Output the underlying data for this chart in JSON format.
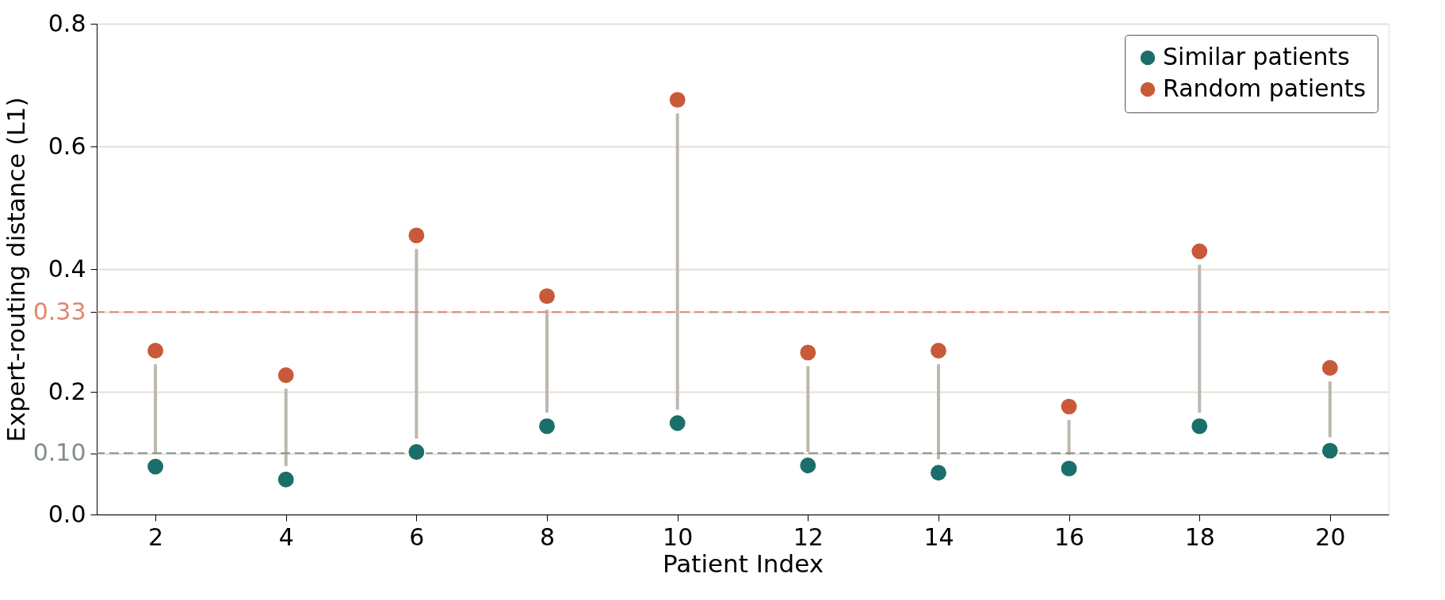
{
  "chart_data": {
    "type": "scatter",
    "xlabel": "Patient Index",
    "ylabel": "Expert-routing distance (L1)",
    "x": [
      2,
      4,
      6,
      8,
      10,
      12,
      14,
      16,
      18,
      20
    ],
    "series": [
      {
        "name": "Similar patients",
        "color": "#1b6f6a",
        "values": [
          0.078,
          0.057,
          0.102,
          0.144,
          0.149,
          0.08,
          0.068,
          0.075,
          0.144,
          0.104
        ],
        "errors": [
          [
            0.1,
            0.245
          ],
          [
            0.079,
            0.205
          ],
          [
            0.124,
            0.433
          ],
          [
            0.166,
            0.334
          ],
          [
            0.171,
            0.654
          ],
          [
            0.102,
            0.242
          ],
          [
            0.09,
            0.245
          ],
          [
            0.097,
            0.154
          ],
          [
            0.166,
            0.407
          ],
          [
            0.126,
            0.217
          ]
        ]
      },
      {
        "name": "Random patients",
        "color": "#c85a3a",
        "values": [
          0.267,
          0.227,
          0.455,
          0.356,
          0.676,
          0.264,
          0.267,
          0.176,
          0.429,
          0.239
        ]
      }
    ],
    "xlim": [
      1.1,
      20.9
    ],
    "xticks": [
      2,
      4,
      6,
      8,
      10,
      12,
      14,
      16,
      18,
      20
    ],
    "ylim": [
      0,
      0.8
    ],
    "yticks": [
      {
        "value": 0,
        "label": "0.0"
      },
      {
        "value": 0.1,
        "label": "0.10"
      },
      {
        "value": 0.2,
        "label": "0.2"
      },
      {
        "value": 0.33,
        "label": "0.33"
      },
      {
        "value": 0.4,
        "label": "0.4"
      },
      {
        "value": 0.6,
        "label": "0.6"
      },
      {
        "value": 0.8,
        "label": "0.8"
      }
    ],
    "ref_lines": [
      {
        "axis": "y",
        "value": 0.33,
        "color": "#e0886f",
        "line_style": "dashed"
      },
      {
        "axis": "y",
        "value": 0.1,
        "color": "#7f8f8a",
        "line_style": "dashed"
      }
    ],
    "grid": "y",
    "legend": "top right",
    "marker": "circle"
  }
}
